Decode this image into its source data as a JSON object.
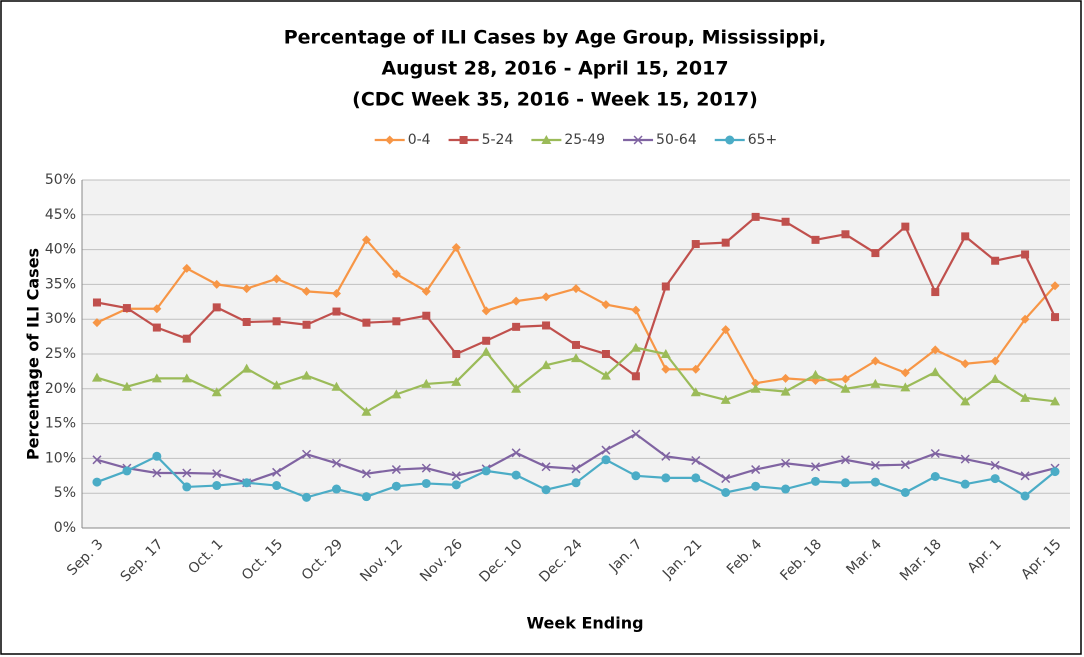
{
  "chart_data": {
    "type": "line",
    "title": [
      "Percentage of ILI Cases by Age Group, Mississippi,",
      "August 28, 2016 - April 15, 2017",
      "(CDC Week 35, 2016 - Week 15, 2017)"
    ],
    "x_label": "Week Ending",
    "y_label": "Percentage of ILI Cases",
    "categories": [
      "Sep. 3",
      null,
      "Sep. 17",
      null,
      "Oct. 1",
      null,
      "Oct. 15",
      null,
      "Oct. 29",
      null,
      "Nov. 12",
      null,
      "Nov. 26",
      null,
      "Dec. 10",
      null,
      "Dec. 24",
      null,
      "Jan. 7",
      null,
      "Jan. 21",
      null,
      "Feb. 4",
      null,
      "Feb. 18",
      null,
      "Mar. 4",
      null,
      "Mar. 18",
      null,
      "Apr. 1",
      null,
      "Apr. 15"
    ],
    "ylim": [
      0,
      50
    ],
    "yticks": [
      {
        "value": 0,
        "label": "0%"
      },
      {
        "value": 5,
        "label": "5%"
      },
      {
        "value": 10,
        "label": "10%"
      },
      {
        "value": 15,
        "label": "15%"
      },
      {
        "value": 20,
        "label": "20%"
      },
      {
        "value": 25,
        "label": "25%"
      },
      {
        "value": 30,
        "label": "30%"
      },
      {
        "value": 35,
        "label": "35%"
      },
      {
        "value": 40,
        "label": "40%"
      },
      {
        "value": 45,
        "label": "45%"
      },
      {
        "value": 50,
        "label": "50%"
      }
    ],
    "grid": true,
    "legend": "top",
    "series": [
      {
        "name": "0-4",
        "color": "#f79646",
        "marker": "diamond",
        "values": [
          29.5,
          31.5,
          31.5,
          37.3,
          35,
          34.4,
          35.8,
          34,
          33.7,
          41.4,
          36.5,
          34,
          40.3,
          31.2,
          32.6,
          33.2,
          34.4,
          32.1,
          31.3,
          22.8,
          22.8,
          28.5,
          20.8,
          21.5,
          21.2,
          21.4,
          24,
          22.3,
          25.6,
          23.6,
          24,
          30,
          34.8
        ]
      },
      {
        "name": "5-24",
        "color": "#c0504d",
        "marker": "square",
        "values": [
          32.4,
          31.6,
          28.8,
          27.2,
          31.7,
          29.6,
          29.7,
          29.2,
          31.1,
          29.5,
          29.7,
          30.5,
          25,
          26.9,
          28.9,
          29.1,
          26.3,
          25,
          21.8,
          34.7,
          40.8,
          41,
          44.7,
          44,
          41.4,
          42.2,
          39.5,
          43.3,
          33.9,
          41.9,
          38.4,
          39.3,
          30.3
        ]
      },
      {
        "name": "25-49",
        "color": "#9bbb59",
        "marker": "triangle",
        "values": [
          21.6,
          20.3,
          21.5,
          21.5,
          19.5,
          22.9,
          20.5,
          21.9,
          20.3,
          16.7,
          19.2,
          20.7,
          21,
          25.3,
          20,
          23.4,
          24.4,
          21.9,
          25.9,
          25,
          19.5,
          18.4,
          20,
          19.6,
          22,
          20,
          20.7,
          20.2,
          22.4,
          18.2,
          21.4,
          18.7,
          18.2
        ]
      },
      {
        "name": "50-64",
        "color": "#8064a2",
        "marker": "x",
        "values": [
          9.8,
          8.6,
          7.9,
          7.9,
          7.8,
          6.5,
          8,
          10.6,
          9.3,
          7.8,
          8.4,
          8.6,
          7.5,
          8.5,
          10.8,
          8.8,
          8.5,
          11.2,
          13.5,
          10.3,
          9.7,
          7.1,
          8.4,
          9.3,
          8.8,
          9.8,
          9,
          9.1,
          10.7,
          9.9,
          9,
          7.5,
          8.6
        ]
      },
      {
        "name": "65+",
        "color": "#4bacc6",
        "marker": "circle",
        "values": [
          6.6,
          8.2,
          10.3,
          5.9,
          6.1,
          6.5,
          6.1,
          4.4,
          5.6,
          4.5,
          6,
          6.4,
          6.2,
          8.2,
          7.6,
          5.5,
          6.5,
          9.8,
          7.5,
          7.2,
          7.2,
          5.1,
          6,
          5.6,
          6.7,
          6.5,
          6.6,
          5.1,
          7.4,
          6.3,
          7.1,
          4.6,
          8.1
        ]
      }
    ]
  }
}
